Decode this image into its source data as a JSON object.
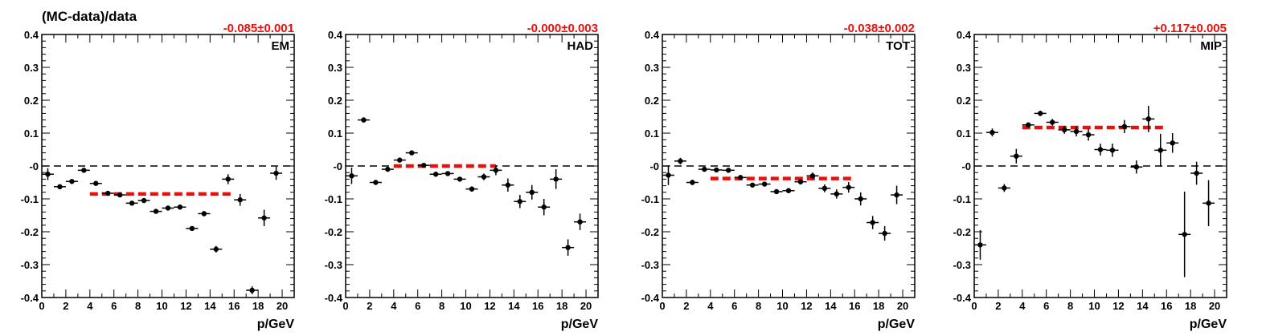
{
  "figure": {
    "ylabel": "(MC-data)/data"
  },
  "colors": {
    "fit": "#e8100c",
    "points": "#000000",
    "reference": "#000000"
  },
  "chart_data": [
    {
      "type": "scatter",
      "label": "EM",
      "fit_text": "-0.085±0.001",
      "fit_value": -0.085,
      "fit_range": [
        4,
        16
      ],
      "xlabel": "p/GeV",
      "ylabel": "(MC-data)/data",
      "xlim": [
        0,
        21
      ],
      "ylim": [
        -0.4,
        0.4
      ],
      "x_ticks": [
        0,
        2,
        4,
        6,
        8,
        10,
        12,
        14,
        16,
        18,
        20
      ],
      "y_ticks": [
        "-0.4",
        "-0.3",
        "-0.2",
        "-0.1",
        "-0",
        "0.1",
        "0.2",
        "0.3",
        "0.4"
      ],
      "x": [
        0.5,
        1.5,
        2.5,
        3.5,
        4.5,
        5.5,
        6.5,
        7.5,
        8.5,
        9.5,
        10.5,
        11.5,
        12.5,
        13.5,
        14.5,
        15.5,
        16.5,
        17.5,
        18.5,
        19.5
      ],
      "y": [
        -0.025,
        -0.063,
        -0.047,
        -0.013,
        -0.053,
        -0.083,
        -0.088,
        -0.113,
        -0.105,
        -0.138,
        -0.128,
        -0.125,
        -0.19,
        -0.145,
        -0.253,
        -0.04,
        -0.103,
        -0.378,
        -0.158,
        -0.022
      ],
      "yerr": [
        0.018,
        0.004,
        0.004,
        0.004,
        0.004,
        0.004,
        0.004,
        0.004,
        0.004,
        0.004,
        0.004,
        0.005,
        0.006,
        0.008,
        0.01,
        0.015,
        0.018,
        0.012,
        0.025,
        0.02
      ]
    },
    {
      "type": "scatter",
      "label": "HAD",
      "fit_text": "-0.000±0.003",
      "fit_value": 0.0,
      "fit_range": [
        4,
        12.5
      ],
      "xlabel": "p/GeV",
      "ylabel": "",
      "xlim": [
        0,
        21
      ],
      "ylim": [
        -0.4,
        0.4
      ],
      "x_ticks": [
        0,
        2,
        4,
        6,
        8,
        10,
        12,
        14,
        16,
        18,
        20
      ],
      "y_ticks": [
        "-0.4",
        "-0.3",
        "-0.2",
        "-0.1",
        "-0",
        "0.1",
        "0.2",
        "0.3",
        "0.4"
      ],
      "x": [
        0.5,
        1.5,
        2.5,
        3.5,
        4.5,
        5.5,
        6.5,
        7.5,
        8.5,
        9.5,
        10.5,
        11.5,
        12.5,
        13.5,
        14.5,
        15.5,
        16.5,
        17.5,
        18.5,
        19.5
      ],
      "y": [
        -0.03,
        0.14,
        -0.05,
        -0.01,
        0.018,
        0.04,
        0.002,
        -0.025,
        -0.023,
        -0.04,
        -0.07,
        -0.033,
        -0.013,
        -0.058,
        -0.108,
        -0.08,
        -0.125,
        -0.04,
        -0.248,
        -0.17
      ],
      "yerr": [
        0.025,
        0.008,
        0.006,
        0.005,
        0.005,
        0.005,
        0.005,
        0.005,
        0.005,
        0.006,
        0.008,
        0.01,
        0.015,
        0.02,
        0.02,
        0.022,
        0.025,
        0.03,
        0.025,
        0.025
      ]
    },
    {
      "type": "scatter",
      "label": "TOT",
      "fit_text": "-0.038±0.002",
      "fit_value": -0.038,
      "fit_range": [
        4,
        16
      ],
      "xlabel": "p/GeV",
      "ylabel": "",
      "xlim": [
        0,
        21
      ],
      "ylim": [
        -0.4,
        0.4
      ],
      "x_ticks": [
        0,
        2,
        4,
        6,
        8,
        10,
        12,
        14,
        16,
        18,
        20
      ],
      "y_ticks": [
        "-0.4",
        "-0.3",
        "-0.2",
        "-0.1",
        "-0",
        "0.1",
        "0.2",
        "0.3",
        "0.4"
      ],
      "x": [
        0.5,
        1.5,
        2.5,
        3.5,
        4.5,
        5.5,
        6.5,
        7.5,
        8.5,
        9.5,
        10.5,
        11.5,
        12.5,
        13.5,
        14.5,
        15.5,
        16.5,
        17.5,
        18.5,
        19.5
      ],
      "y": [
        -0.028,
        0.015,
        -0.05,
        -0.01,
        -0.012,
        -0.013,
        -0.035,
        -0.058,
        -0.055,
        -0.078,
        -0.075,
        -0.048,
        -0.03,
        -0.068,
        -0.085,
        -0.065,
        -0.1,
        -0.172,
        -0.205,
        -0.088
      ],
      "yerr": [
        0.03,
        0.01,
        0.008,
        0.006,
        0.005,
        0.005,
        0.005,
        0.005,
        0.005,
        0.006,
        0.006,
        0.008,
        0.01,
        0.012,
        0.014,
        0.016,
        0.02,
        0.02,
        0.022,
        0.028
      ]
    },
    {
      "type": "scatter",
      "label": "MIP",
      "fit_text": "+0.117±0.005",
      "fit_value": 0.117,
      "fit_range": [
        4,
        16
      ],
      "xlabel": "p/GeV",
      "ylabel": "",
      "xlim": [
        0,
        21
      ],
      "ylim": [
        -0.4,
        0.4
      ],
      "x_ticks": [
        0,
        2,
        4,
        6,
        8,
        10,
        12,
        14,
        16,
        18,
        20
      ],
      "y_ticks": [
        "-0.4",
        "-0.3",
        "-0.2",
        "-0.1",
        "-0",
        "0.1",
        "0.2",
        "0.3",
        "0.4"
      ],
      "x": [
        0.5,
        1.5,
        2.5,
        3.5,
        4.5,
        5.5,
        6.5,
        7.5,
        8.5,
        9.5,
        10.5,
        11.5,
        12.5,
        13.5,
        14.5,
        15.5,
        16.5,
        17.5,
        18.5,
        19.5
      ],
      "y": [
        -0.24,
        0.102,
        -0.067,
        0.03,
        0.125,
        0.16,
        0.133,
        0.11,
        0.105,
        0.095,
        0.05,
        0.048,
        0.12,
        -0.003,
        0.143,
        0.048,
        0.07,
        -0.208,
        -0.022,
        -0.113
      ],
      "yerr": [
        0.045,
        0.012,
        0.012,
        0.022,
        0.008,
        0.008,
        0.01,
        0.012,
        0.015,
        0.018,
        0.018,
        0.02,
        0.02,
        0.02,
        0.04,
        0.05,
        0.03,
        0.13,
        0.035,
        0.07
      ]
    }
  ]
}
